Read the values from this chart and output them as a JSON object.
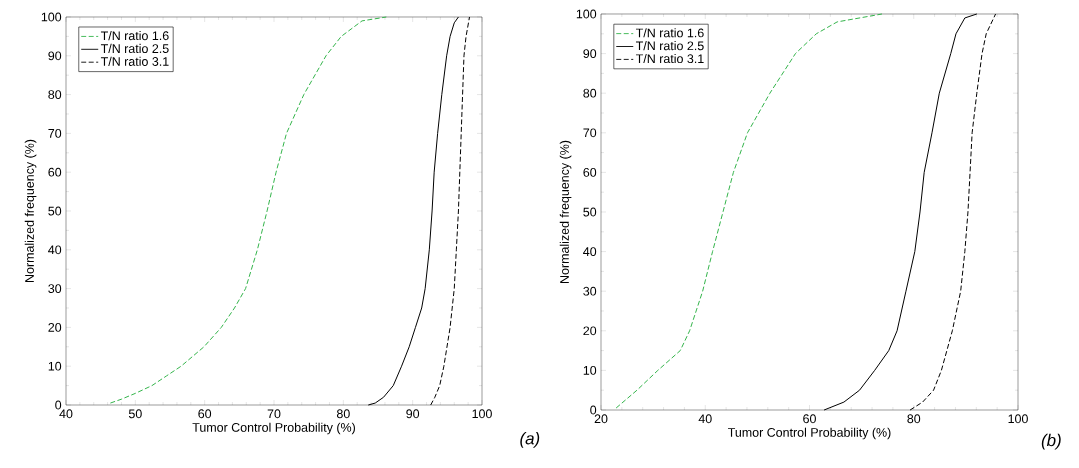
{
  "chart_data": [
    {
      "type": "line",
      "xlabel": "Tumor Control Probability (%)",
      "ylabel": "Normalized frequency (%)",
      "xlim": [
        40,
        100
      ],
      "ylim": [
        0,
        100
      ],
      "xticks": [
        40,
        50,
        60,
        70,
        80,
        90,
        100
      ],
      "yticks": [
        0,
        10,
        20,
        30,
        40,
        50,
        60,
        70,
        80,
        90,
        100
      ],
      "legend": "top left",
      "annotations": [
        "(a)"
      ],
      "series": [
        {
          "name": "T/N ratio 1.6",
          "color": "#33b44a",
          "line_style": "dashed",
          "x": [
            46.4,
            48,
            50,
            52.4,
            54.5,
            56.6,
            59.9,
            62.4,
            64.3,
            65.9,
            67.6,
            69.0,
            70.3,
            71.8,
            74.3,
            77.5,
            79.7,
            82.7,
            86.2
          ],
          "values": [
            0.5,
            1.5,
            3,
            5,
            7.5,
            10,
            15,
            20,
            25,
            30,
            40,
            50,
            60,
            70,
            80,
            90,
            95,
            99,
            100
          ]
        },
        {
          "name": "T/N ratio 2.5",
          "color": "#000000",
          "line_style": "solid",
          "x": [
            83.6,
            84.6,
            85.8,
            87.2,
            88.4,
            89.5,
            90.4,
            91.3,
            91.8,
            92.4,
            92.8,
            93.1,
            93.6,
            94.2,
            94.9,
            95.4,
            96.0,
            96.6
          ],
          "values": [
            0,
            0.5,
            2,
            5,
            10,
            15,
            20,
            25,
            30,
            40,
            50,
            60,
            70,
            80,
            90,
            95,
            98.5,
            100
          ]
        },
        {
          "name": "T/N ratio 3.1",
          "color": "#000000",
          "line_style": "dashed",
          "x": [
            92.6,
            93.2,
            93.9,
            94.5,
            95.4,
            96.0,
            96.3,
            96.6,
            96.8,
            97.0,
            97.2,
            97.4,
            97.7,
            98.2
          ],
          "values": [
            0,
            2,
            5,
            10,
            20,
            30,
            40,
            50,
            60,
            70,
            80,
            90,
            95,
            100
          ]
        }
      ]
    },
    {
      "type": "line",
      "xlabel": "Tumor Control Probability (%)",
      "ylabel": "Normalized frequency (%)",
      "xlim": [
        20,
        100
      ],
      "ylim": [
        0,
        100
      ],
      "xticks": [
        20,
        40,
        60,
        80,
        100
      ],
      "yticks": [
        0,
        10,
        20,
        30,
        40,
        50,
        60,
        70,
        80,
        90,
        100
      ],
      "legend": "top left",
      "annotations": [
        "(b)"
      ],
      "series": [
        {
          "name": "T/N ratio 1.6",
          "color": "#33b44a",
          "line_style": "dashed",
          "x": [
            22.9,
            26.9,
            30.9,
            35.2,
            37.0,
            39.5,
            41.4,
            43.4,
            45.4,
            48.1,
            52.4,
            57.3,
            61.3,
            65.3,
            73.9
          ],
          "values": [
            0.5,
            5,
            10,
            15,
            20,
            30,
            40,
            50,
            60,
            70,
            80,
            90,
            95,
            98,
            100
          ]
        },
        {
          "name": "T/N ratio 2.5",
          "color": "#000000",
          "line_style": "solid",
          "x": [
            62.8,
            66.6,
            69.6,
            72.5,
            75.2,
            76.8,
            78.5,
            80.2,
            81.2,
            82.0,
            83.5,
            84.9,
            87.1,
            88.1,
            89.8,
            92.1
          ],
          "values": [
            0,
            2,
            5,
            10,
            15,
            20,
            30,
            40,
            50,
            60,
            70,
            80,
            90,
            95,
            99,
            100
          ]
        },
        {
          "name": "T/N ratio 3.1",
          "color": "#000000",
          "line_style": "dashed",
          "x": [
            79.3,
            81.7,
            83.8,
            85.3,
            87.4,
            89.0,
            89.8,
            90.4,
            90.8,
            91.2,
            92.1,
            93.1,
            93.9,
            95.7
          ],
          "values": [
            0,
            2,
            5,
            10,
            20,
            30,
            40,
            50,
            60,
            70,
            80,
            90,
            95,
            100
          ]
        }
      ]
    }
  ]
}
